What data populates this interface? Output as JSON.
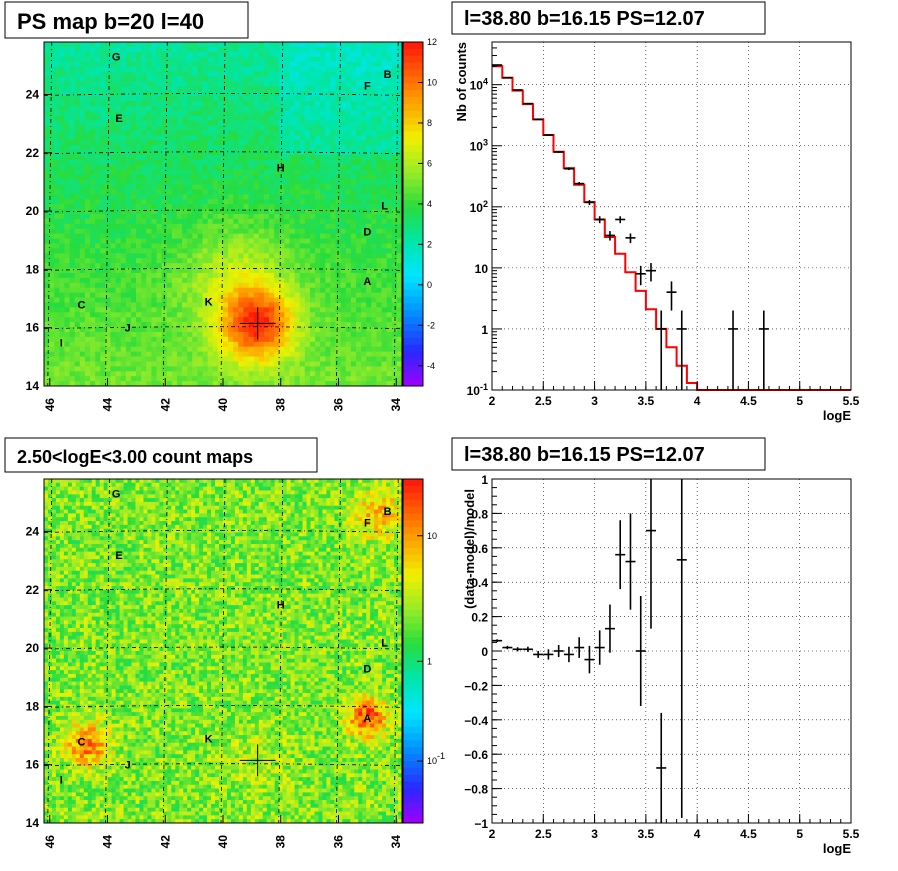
{
  "chart_data": [
    {
      "type": "heatmap",
      "title": "PS map b=20 l=40",
      "x_axis": {
        "range": [
          46.2,
          33.8
        ],
        "ticks": [
          "46",
          "44",
          "42",
          "40",
          "38",
          "36",
          "34"
        ]
      },
      "y_axis": {
        "range": [
          14,
          25.8
        ],
        "ticks": [
          "14",
          "16",
          "18",
          "20",
          "22",
          "24"
        ]
      },
      "colorbar": {
        "range": [
          -5,
          12
        ],
        "ticks": [
          "-4",
          "-2",
          "0",
          "2",
          "4",
          "6",
          "8",
          "10",
          "12"
        ]
      },
      "crosshair": {
        "l": 38.8,
        "b": 16.15
      },
      "sources": [
        {
          "label": "G",
          "l": 43.7,
          "b": 25.3
        },
        {
          "label": "B",
          "l": 34.3,
          "b": 24.7
        },
        {
          "label": "F",
          "l": 35.0,
          "b": 24.3
        },
        {
          "label": "E",
          "l": 43.6,
          "b": 23.2
        },
        {
          "label": "H",
          "l": 38.0,
          "b": 21.5
        },
        {
          "label": "L",
          "l": 34.4,
          "b": 20.2
        },
        {
          "label": "D",
          "l": 35.0,
          "b": 19.3
        },
        {
          "label": "A",
          "l": 35.0,
          "b": 17.6
        },
        {
          "label": "C",
          "l": 44.9,
          "b": 16.8
        },
        {
          "label": "K",
          "l": 40.5,
          "b": 16.9
        },
        {
          "label": "J",
          "l": 43.3,
          "b": 16.0
        },
        {
          "label": "I",
          "l": 45.6,
          "b": 15.5
        }
      ]
    },
    {
      "type": "line",
      "title": "l=38.80 b=16.15 PS=12.07",
      "xlabel": "logE",
      "ylabel": "Nb of counts",
      "xlim": [
        2,
        5.5
      ],
      "ylim": [
        0.1,
        50000
      ],
      "log_y": true,
      "grid": true,
      "x_ticks": [
        "2",
        "2.5",
        "3",
        "3.5",
        "4",
        "4.5",
        "5",
        "5.5"
      ],
      "y_ticks": [
        "10^-1",
        "1",
        "10",
        "10^2",
        "10^3",
        "10^4"
      ],
      "model_step": {
        "bin_edges": [
          2.0,
          2.1,
          2.2,
          2.3,
          2.4,
          2.5,
          2.6,
          2.7,
          2.8,
          2.9,
          3.0,
          3.1,
          3.2,
          3.3,
          3.4,
          3.5,
          3.6,
          3.7,
          3.8,
          3.9,
          4.0,
          4.1,
          4.2,
          4.3,
          4.4,
          4.5,
          4.6,
          4.7,
          4.8,
          4.9,
          5.0,
          5.1,
          5.2,
          5.3,
          5.4,
          5.5
        ],
        "values": [
          20000,
          13000,
          8000,
          4800,
          2700,
          1500,
          800,
          430,
          230,
          120,
          62,
          32,
          17,
          8.5,
          4.2,
          2.1,
          1.0,
          0.5,
          0.25,
          0.13,
          0.1,
          0.1,
          0.1,
          0.1,
          0.1,
          0.1,
          0.1,
          0.1,
          0.1,
          0.1,
          0.1,
          0.1,
          0.1,
          0.1,
          0.1
        ]
      },
      "data_points": {
        "x": [
          2.05,
          2.15,
          2.25,
          2.35,
          2.45,
          2.55,
          2.65,
          2.75,
          2.85,
          2.95,
          3.05,
          3.15,
          3.25,
          3.35,
          3.45,
          3.55,
          3.65,
          3.75,
          3.85,
          4.35,
          4.65
        ],
        "y": [
          21000,
          13000,
          8200,
          4900,
          2700,
          1500,
          790,
          420,
          240,
          118,
          62,
          34,
          62,
          31,
          8,
          9,
          1,
          4,
          1,
          1,
          1
        ],
        "err": [
          145,
          114,
          91,
          70,
          52,
          39,
          28,
          20,
          15,
          11,
          8,
          6,
          8,
          5.6,
          2.8,
          3,
          1,
          2,
          1,
          1,
          1
        ]
      }
    },
    {
      "type": "heatmap",
      "title": "2.50<logE<3.00 count maps",
      "x_axis": {
        "range": [
          46.2,
          33.8
        ],
        "ticks": [
          "46",
          "44",
          "42",
          "40",
          "38",
          "36",
          "34"
        ]
      },
      "y_axis": {
        "range": [
          14,
          25.8
        ],
        "ticks": [
          "14",
          "16",
          "18",
          "20",
          "22",
          "24"
        ]
      },
      "colorbar": {
        "log": true,
        "ticks": [
          "10",
          "1",
          "10^-1"
        ]
      },
      "crosshair": {
        "l": 38.8,
        "b": 16.15
      },
      "sources": [
        {
          "label": "G",
          "l": 43.7,
          "b": 25.3
        },
        {
          "label": "B",
          "l": 34.3,
          "b": 24.7
        },
        {
          "label": "F",
          "l": 35.0,
          "b": 24.3
        },
        {
          "label": "E",
          "l": 43.6,
          "b": 23.2
        },
        {
          "label": "H",
          "l": 38.0,
          "b": 21.5
        },
        {
          "label": "L",
          "l": 34.4,
          "b": 20.2
        },
        {
          "label": "D",
          "l": 35.0,
          "b": 19.3
        },
        {
          "label": "A",
          "l": 35.0,
          "b": 17.6
        },
        {
          "label": "C",
          "l": 44.9,
          "b": 16.8
        },
        {
          "label": "K",
          "l": 40.5,
          "b": 16.9
        },
        {
          "label": "J",
          "l": 43.3,
          "b": 16.0
        },
        {
          "label": "I",
          "l": 45.6,
          "b": 15.5
        }
      ]
    },
    {
      "type": "scatter",
      "title": "l=38.80 b=16.15 PS=12.07",
      "xlabel": "logE",
      "ylabel": "(data-model)/model",
      "xlim": [
        2,
        5.5
      ],
      "ylim": [
        -1,
        1
      ],
      "grid": true,
      "x_ticks": [
        "2",
        "2.5",
        "3",
        "3.5",
        "4",
        "4.5",
        "5",
        "5.5"
      ],
      "y_ticks": [
        "−1",
        "−0.8",
        "−0.6",
        "−0.4",
        "−0.2",
        "0",
        "0.2",
        "0.4",
        "0.6",
        "0.8",
        "1"
      ],
      "data_points": {
        "x": [
          2.05,
          2.15,
          2.25,
          2.35,
          2.45,
          2.55,
          2.65,
          2.75,
          2.85,
          2.95,
          3.05,
          3.15,
          3.25,
          3.35,
          3.45,
          3.55,
          3.65,
          3.85
        ],
        "y": [
          0.06,
          0.02,
          0.01,
          0.01,
          -0.02,
          -0.02,
          0.0,
          -0.02,
          0.02,
          -0.05,
          0.02,
          0.13,
          0.56,
          0.52,
          0.0,
          0.7,
          -0.68,
          0.53
        ],
        "err": [
          0.008,
          0.01,
          0.012,
          0.015,
          0.02,
          0.03,
          0.035,
          0.045,
          0.06,
          0.08,
          0.1,
          0.14,
          0.2,
          0.28,
          0.32,
          0.57,
          0.32,
          1.5
        ]
      }
    }
  ]
}
